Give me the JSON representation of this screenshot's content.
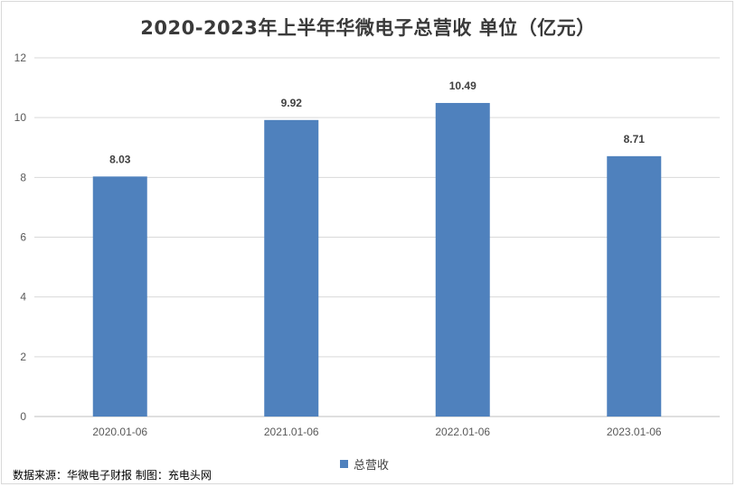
{
  "title": "2020-2023年上半年华微电子总营收 单位（亿元）",
  "source_note": "数据来源：华微电子财报 制图：充电头网",
  "legend": {
    "label": "总营收"
  },
  "colors": {
    "bar": "#4f81bd",
    "grid": "#d9d9d9",
    "axis_text": "#595959",
    "label_text": "#404040"
  },
  "chart_data": {
    "type": "bar",
    "title": "2020-2023年上半年华微电子总营收 单位（亿元）",
    "categories": [
      "2020.01-06",
      "2021.01-06",
      "2022.01-06",
      "2023.01-06"
    ],
    "series": [
      {
        "name": "总营收",
        "values": [
          8.03,
          9.92,
          10.49,
          8.71
        ]
      }
    ],
    "value_labels": [
      "8.03",
      "9.92",
      "10.49",
      "8.71"
    ],
    "y_ticks": [
      "0",
      "2",
      "4",
      "6",
      "8",
      "10",
      "12"
    ],
    "ylim": [
      0,
      12
    ],
    "grid": true,
    "legend_position": "bottom"
  }
}
